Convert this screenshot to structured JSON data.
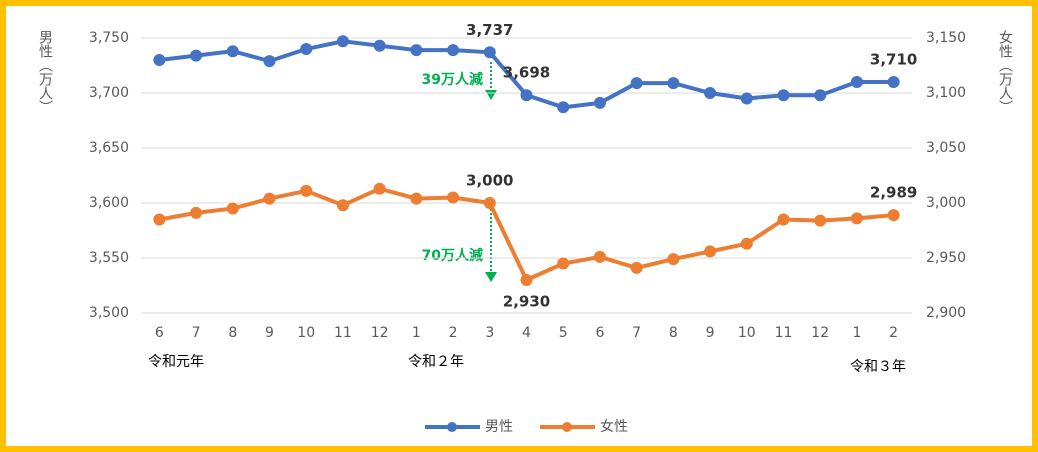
{
  "chart_data": {
    "type": "line",
    "y_label": "男性（万人）",
    "y2_label": "女性（万人）",
    "categories": [
      "6",
      "7",
      "8",
      "9",
      "10",
      "11",
      "12",
      "1",
      "2",
      "3",
      "4",
      "5",
      "6",
      "7",
      "8",
      "9",
      "10",
      "11",
      "12",
      "1",
      "2"
    ],
    "year_labels": [
      "令和元年",
      "令和２年",
      "令和３年"
    ],
    "annotations": [
      "39万人減",
      "70万人減"
    ],
    "series": [
      {
        "name": "男性",
        "color": "#4472c4",
        "axis": "y",
        "values": [
          3730,
          3734,
          3738,
          3729,
          3740,
          3747,
          3743,
          3739,
          3739,
          3737,
          3698,
          3687,
          3691,
          3709,
          3709,
          3700,
          3695,
          3698,
          3698,
          3710,
          3710
        ],
        "value_labels": [
          null,
          null,
          null,
          null,
          null,
          null,
          null,
          null,
          null,
          "3,737",
          "3,698",
          null,
          null,
          null,
          null,
          null,
          null,
          null,
          null,
          null,
          "3,710"
        ]
      },
      {
        "name": "女性",
        "color": "#ed7d31",
        "axis": "y2",
        "values": [
          2985,
          2991,
          2995,
          3004,
          3011,
          2998,
          3013,
          3004,
          3005,
          3000,
          2930,
          2945,
          2951,
          2941,
          2949,
          2956,
          2963,
          2985,
          2984,
          2986,
          2989
        ],
        "value_labels": [
          null,
          null,
          null,
          null,
          null,
          null,
          null,
          null,
          null,
          "3,000",
          "2,930",
          null,
          null,
          null,
          null,
          null,
          null,
          null,
          null,
          null,
          "2,989"
        ]
      }
    ],
    "ylim": [
      3500,
      3750
    ],
    "yticks": [
      {
        "value": 3500,
        "label": "3,500"
      },
      {
        "value": 3550,
        "label": "3,550"
      },
      {
        "value": 3600,
        "label": "3,600"
      },
      {
        "value": 3650,
        "label": "3,650"
      },
      {
        "value": 3700,
        "label": "3,700"
      },
      {
        "value": 3750,
        "label": "3,750"
      }
    ],
    "y2lim": [
      2900,
      3150
    ],
    "y2ticks": [
      {
        "value": 2900,
        "label": "2,900"
      },
      {
        "value": 2950,
        "label": "2,950"
      },
      {
        "value": 3000,
        "label": "3,000"
      },
      {
        "value": 3050,
        "label": "3,050"
      },
      {
        "value": 3100,
        "label": "3,100"
      },
      {
        "value": 3150,
        "label": "3,150"
      }
    ],
    "grid": true
  }
}
